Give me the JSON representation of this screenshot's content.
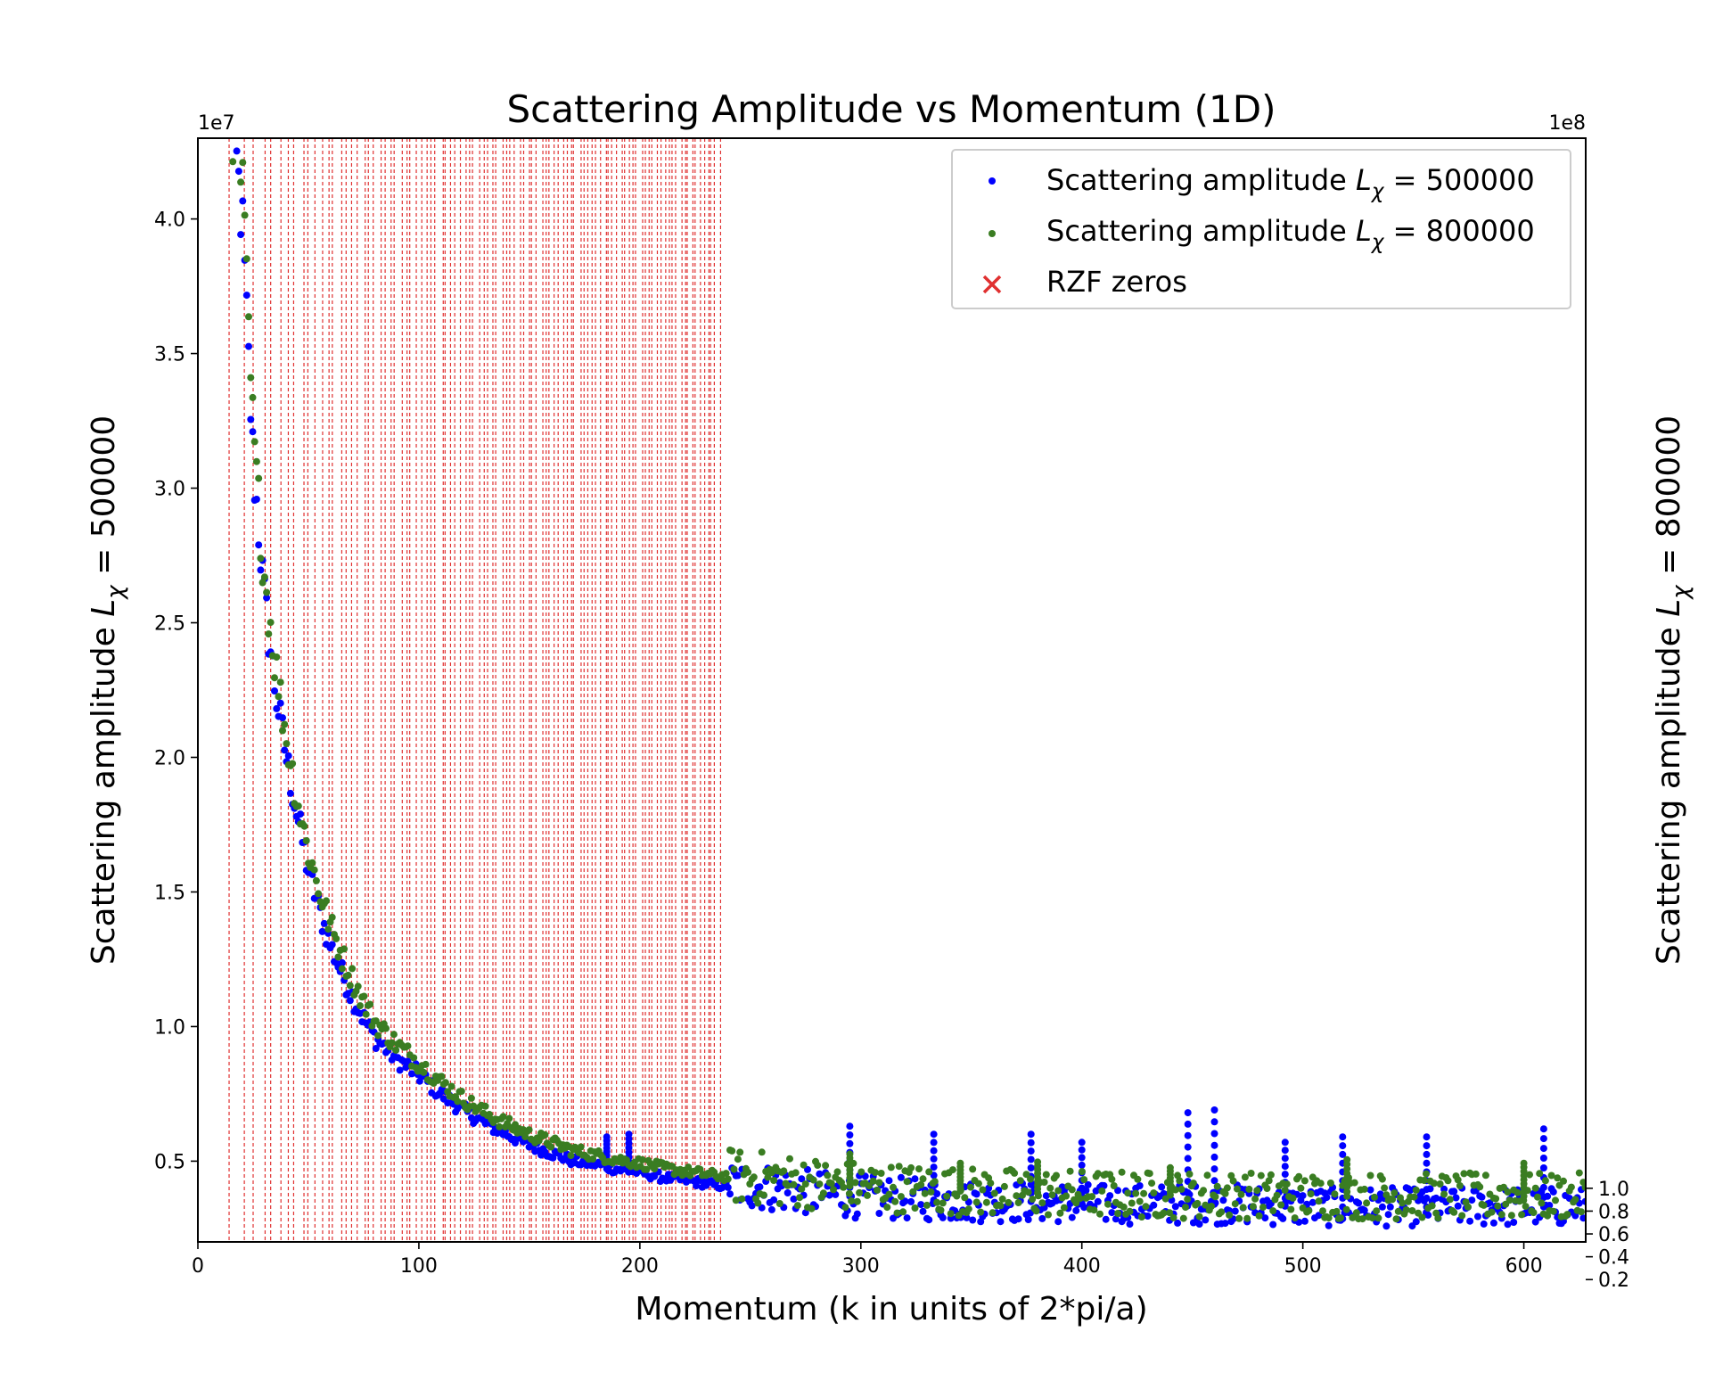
{
  "chart_data": {
    "type": "scatter",
    "title": "Scattering Amplitude vs Momentum (1D)",
    "xlabel": "Momentum (k in units of 2*pi/a)",
    "ylabel_left_prefix": "Scattering amplitude ",
    "ylabel_right_prefix": "Scattering amplitude ",
    "ylabel_symbol": "L",
    "ylabel_subscript": "χ",
    "ylabel_left_suffix": " = 500000",
    "ylabel_right_suffix": " = 800000",
    "xlim": [
      0,
      628
    ],
    "ylim_left": [
      2000000,
      43000000
    ],
    "ylim_right": [
      53000000,
      1020000000
    ],
    "left_offset_label": "1e7",
    "right_offset_label": "1e8",
    "x_ticks": [
      0,
      100,
      200,
      300,
      400,
      500,
      600
    ],
    "x_tick_labels": [
      "0",
      "100",
      "200",
      "300",
      "400",
      "500",
      "600"
    ],
    "y_left_ticks": [
      0.5,
      1.0,
      1.5,
      2.0,
      2.5,
      3.0,
      3.5,
      4.0
    ],
    "y_left_tick_labels": [
      "0.5",
      "1.0",
      "1.5",
      "2.0",
      "2.5",
      "3.0",
      "3.5",
      "4.0"
    ],
    "y_right_ticks": [
      0.2,
      0.4,
      0.6,
      0.8,
      1.0
    ],
    "y_right_tick_labels": [
      "0.2",
      "0.4",
      "0.6",
      "0.8",
      "1.0"
    ],
    "grid": false,
    "legend_position": "top-right",
    "series": [
      {
        "name": "Scattering amplitude L_χ = 500000",
        "legend_prefix": "Scattering amplitude ",
        "legend_suffix": " = 500000",
        "axis": "left",
        "color": "#0000ff",
        "marker": "dot",
        "points": [
          [
            15,
            44000000
          ],
          [
            20,
            40000000
          ],
          [
            25,
            31000000
          ],
          [
            30,
            26000000
          ],
          [
            35,
            22500000
          ],
          [
            40,
            20000000
          ],
          [
            45,
            17800000
          ],
          [
            50,
            15800000
          ],
          [
            55,
            14300000
          ],
          [
            60,
            13000000
          ],
          [
            65,
            12000000
          ],
          [
            70,
            11100000
          ],
          [
            75,
            10300000
          ],
          [
            80,
            9600000
          ],
          [
            90,
            8800000
          ],
          [
            100,
            8200000
          ],
          [
            110,
            7500000
          ],
          [
            120,
            6900000
          ],
          [
            130,
            6400000
          ],
          [
            140,
            6000000
          ],
          [
            150,
            5600000
          ],
          [
            160,
            5300000
          ],
          [
            170,
            5000000
          ],
          [
            180,
            4900000
          ],
          [
            190,
            4700000
          ],
          [
            200,
            4600000
          ],
          [
            210,
            4400000
          ],
          [
            220,
            4300000
          ],
          [
            235,
            4100000
          ],
          [
            250,
            4100000
          ],
          [
            270,
            3900000
          ],
          [
            295,
            3700000
          ],
          [
            320,
            3600000
          ],
          [
            350,
            3500000
          ],
          [
            380,
            3500000
          ],
          [
            410,
            3400000
          ],
          [
            440,
            3400000
          ],
          [
            470,
            3400000
          ],
          [
            500,
            3300000
          ],
          [
            530,
            3300000
          ],
          [
            560,
            3300000
          ],
          [
            590,
            3300000
          ],
          [
            625,
            3300000
          ]
        ],
        "spikes": [
          [
            185,
            5900000
          ],
          [
            195,
            6000000
          ],
          [
            295,
            6300000
          ],
          [
            333,
            6000000
          ],
          [
            377,
            6000000
          ],
          [
            400,
            5700000
          ],
          [
            448,
            6800000
          ],
          [
            460,
            6900000
          ],
          [
            492,
            5700000
          ],
          [
            518,
            5900000
          ],
          [
            556,
            5900000
          ],
          [
            609,
            6200000
          ]
        ]
      },
      {
        "name": "Scattering amplitude L_χ = 800000",
        "legend_prefix": "Scattering amplitude ",
        "legend_suffix": " = 800000",
        "axis": "right",
        "color": "#3a7d22",
        "marker": "dot",
        "points": [
          [
            15,
            1050000000
          ],
          [
            20,
            980000000
          ],
          [
            25,
            760000000
          ],
          [
            30,
            640000000
          ],
          [
            35,
            560000000
          ],
          [
            40,
            495000000
          ],
          [
            45,
            440000000
          ],
          [
            50,
            395000000
          ],
          [
            55,
            360000000
          ],
          [
            60,
            330000000
          ],
          [
            65,
            305000000
          ],
          [
            70,
            283000000
          ],
          [
            75,
            263000000
          ],
          [
            80,
            246000000
          ],
          [
            90,
            226000000
          ],
          [
            100,
            210000000
          ],
          [
            110,
            193000000
          ],
          [
            120,
            178000000
          ],
          [
            130,
            166000000
          ],
          [
            140,
            156000000
          ],
          [
            150,
            147000000
          ],
          [
            160,
            140000000
          ],
          [
            170,
            133000000
          ],
          [
            180,
            129000000
          ],
          [
            190,
            125000000
          ],
          [
            200,
            122000000
          ],
          [
            210,
            118000000
          ],
          [
            220,
            115000000
          ],
          [
            235,
            111000000
          ],
          [
            250,
            110000000
          ],
          [
            270,
            106000000
          ],
          [
            295,
            102000000
          ],
          [
            320,
            100000000
          ],
          [
            350,
            97000000
          ],
          [
            380,
            96000000
          ],
          [
            410,
            95000000
          ],
          [
            440,
            94000000
          ],
          [
            470,
            94000000
          ],
          [
            500,
            93000000
          ],
          [
            530,
            93000000
          ],
          [
            560,
            93000000
          ],
          [
            590,
            93000000
          ],
          [
            625,
            93000000
          ]
        ],
        "spikes": [
          [
            295,
            130000000
          ],
          [
            345,
            122000000
          ],
          [
            380,
            123000000
          ],
          [
            440,
            118000000
          ],
          [
            520,
            125000000
          ],
          [
            600,
            122000000
          ]
        ]
      },
      {
        "name": "RZF zeros",
        "axis": "left",
        "color": "#e03030",
        "marker": "x",
        "x": [
          14.13,
          21.02,
          25.01,
          30.42,
          32.94,
          37.59,
          40.92,
          43.33,
          48.01,
          49.77,
          52.97,
          56.45,
          59.35,
          60.83,
          65.11,
          67.08,
          69.55,
          72.07,
          75.7,
          77.14,
          79.34,
          82.91,
          84.74,
          87.43,
          88.81,
          92.49,
          94.65,
          95.87,
          98.83,
          101.32,
          103.73,
          105.45,
          107.17,
          111.03,
          111.87,
          114.32,
          116.23,
          118.79,
          121.37,
          122.95,
          124.26,
          127.52,
          129.58,
          131.09,
          133.5,
          134.76,
          138.12,
          139.74,
          141.12,
          143.11,
          146.0,
          147.42,
          150.05,
          150.93,
          153.02,
          156.11,
          157.6,
          158.85,
          161.19,
          163.03,
          165.54,
          167.18,
          169.09,
          169.91,
          173.41,
          174.75,
          176.44,
          178.38,
          179.92,
          182.21,
          184.87,
          185.6,
          187.23,
          189.42,
          192.03,
          193.08,
          195.27,
          196.88,
          198.02,
          201.26,
          202.49,
          204.19,
          205.39,
          207.91,
          209.58,
          211.69,
          213.35,
          214.55,
          216.17,
          219.07,
          220.71,
          221.43,
          224.01,
          224.98,
          227.42,
          229.34,
          231.25,
          231.99,
          233.69,
          236.52
        ]
      }
    ]
  }
}
